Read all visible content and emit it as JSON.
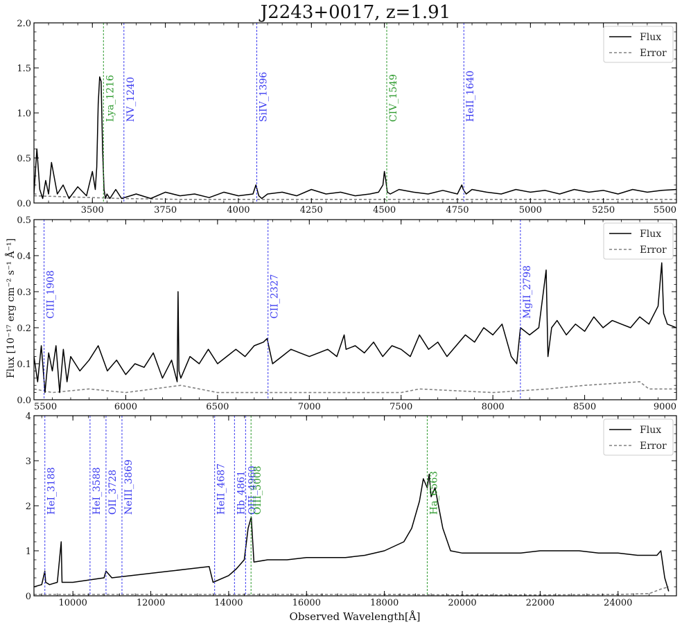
{
  "title": "J2243+0017, z=1.91",
  "xlabel": "Observed Wavelength[Å]",
  "ylabel": "Flux [10⁻¹⁷ erg cm⁻² s⁻¹ Å⁻¹]",
  "legend": {
    "flux": "Flux",
    "error": "Error"
  },
  "colors": {
    "flux": "#000000",
    "error": "#808080",
    "blue_line": "#3b3bf0",
    "green_line": "#2e9a2e"
  },
  "chart_data": [
    {
      "type": "line",
      "xlim": [
        3300,
        5500
      ],
      "ylim": [
        0,
        2.0
      ],
      "xticks": [
        3500,
        3750,
        4000,
        4250,
        4500,
        4750,
        5000,
        5250,
        5500
      ],
      "yticks": [
        0.0,
        0.5,
        1.0,
        1.5,
        2.0
      ],
      "ytick_labels": [
        "0.0",
        "0.5",
        "1.0",
        "1.5",
        "2.0"
      ],
      "legend_position": "top-right",
      "series": [
        {
          "name": "Flux",
          "style": "solid",
          "x": [
            3300,
            3310,
            3320,
            3330,
            3340,
            3350,
            3360,
            3380,
            3400,
            3420,
            3450,
            3480,
            3500,
            3510,
            3515,
            3520,
            3525,
            3530,
            3535,
            3540,
            3545,
            3550,
            3560,
            3580,
            3600,
            3650,
            3700,
            3750,
            3800,
            3850,
            3900,
            3950,
            4000,
            4050,
            4060,
            4070,
            4080,
            4100,
            4150,
            4200,
            4250,
            4300,
            4350,
            4400,
            4450,
            4480,
            4495,
            4500,
            4505,
            4510,
            4520,
            4550,
            4600,
            4650,
            4700,
            4750,
            4765,
            4770,
            4780,
            4800,
            4850,
            4900,
            4950,
            5000,
            5050,
            5100,
            5150,
            5200,
            5250,
            5300,
            5350,
            5400,
            5450,
            5500
          ],
          "y": [
            0.1,
            0.6,
            0.15,
            0.05,
            0.25,
            0.1,
            0.45,
            0.1,
            0.2,
            0.05,
            0.18,
            0.08,
            0.35,
            0.15,
            0.4,
            1.1,
            1.4,
            1.35,
            0.6,
            0.15,
            0.05,
            0.1,
            0.05,
            0.15,
            0.05,
            0.1,
            0.05,
            0.12,
            0.08,
            0.1,
            0.06,
            0.12,
            0.08,
            0.1,
            0.2,
            0.08,
            0.05,
            0.1,
            0.12,
            0.08,
            0.15,
            0.1,
            0.12,
            0.08,
            0.1,
            0.12,
            0.2,
            0.35,
            0.25,
            0.12,
            0.1,
            0.15,
            0.12,
            0.1,
            0.14,
            0.1,
            0.2,
            0.15,
            0.1,
            0.15,
            0.12,
            0.1,
            0.15,
            0.12,
            0.14,
            0.1,
            0.15,
            0.12,
            0.14,
            0.1,
            0.15,
            0.12,
            0.14,
            0.15
          ]
        },
        {
          "name": "Error",
          "style": "dashed",
          "x": [
            3300,
            3400,
            3500,
            3600,
            3800,
            4000,
            4500,
            5000,
            5500
          ],
          "y": [
            0.08,
            0.07,
            0.06,
            0.05,
            0.04,
            0.04,
            0.04,
            0.04,
            0.04
          ]
        }
      ],
      "lines": [
        {
          "x": 3538,
          "label": "Lya_1216",
          "color": "green"
        },
        {
          "x": 3608,
          "label": "NV_1240",
          "color": "blue"
        },
        {
          "x": 4063,
          "label": "SiIV_1396",
          "color": "blue"
        },
        {
          "x": 4508,
          "label": "CIV_1549",
          "color": "green"
        },
        {
          "x": 4772,
          "label": "HeII_1640",
          "color": "blue"
        }
      ]
    },
    {
      "type": "line",
      "xlim": [
        5500,
        9000
      ],
      "ylim": [
        0,
        0.5
      ],
      "xticks": [
        5500,
        6000,
        6500,
        7000,
        7500,
        8000,
        8500,
        9000
      ],
      "yticks": [
        0.0,
        0.1,
        0.2,
        0.3,
        0.4,
        0.5
      ],
      "ytick_labels": [
        "0.0",
        "0.1",
        "0.2",
        "0.3",
        "0.4",
        "0.5"
      ],
      "legend_position": "top-right",
      "series": [
        {
          "name": "Flux",
          "style": "solid",
          "x": [
            5500,
            5520,
            5540,
            5560,
            5580,
            5600,
            5620,
            5640,
            5660,
            5680,
            5700,
            5750,
            5800,
            5850,
            5900,
            5950,
            6000,
            6050,
            6100,
            6150,
            6200,
            6250,
            6280,
            6285,
            6290,
            6300,
            6350,
            6400,
            6450,
            6500,
            6550,
            6600,
            6650,
            6700,
            6750,
            6770,
            6800,
            6850,
            6900,
            6950,
            7000,
            7100,
            7150,
            7190,
            7200,
            7250,
            7300,
            7350,
            7400,
            7450,
            7500,
            7550,
            7600,
            7650,
            7700,
            7750,
            7800,
            7850,
            7900,
            7950,
            8000,
            8050,
            8100,
            8130,
            8150,
            8200,
            8250,
            8290,
            8300,
            8320,
            8350,
            8400,
            8450,
            8500,
            8550,
            8600,
            8650,
            8700,
            8750,
            8800,
            8850,
            8900,
            8920,
            8930,
            8950,
            9000
          ],
          "y": [
            0.12,
            0.05,
            0.15,
            0.02,
            0.13,
            0.08,
            0.15,
            0.02,
            0.14,
            0.05,
            0.12,
            0.08,
            0.11,
            0.15,
            0.08,
            0.11,
            0.07,
            0.1,
            0.09,
            0.13,
            0.06,
            0.11,
            0.05,
            0.3,
            0.08,
            0.06,
            0.12,
            0.1,
            0.14,
            0.1,
            0.12,
            0.14,
            0.12,
            0.15,
            0.16,
            0.17,
            0.1,
            0.12,
            0.14,
            0.13,
            0.12,
            0.14,
            0.12,
            0.18,
            0.14,
            0.15,
            0.13,
            0.16,
            0.12,
            0.15,
            0.14,
            0.12,
            0.18,
            0.14,
            0.16,
            0.12,
            0.15,
            0.18,
            0.16,
            0.2,
            0.18,
            0.21,
            0.12,
            0.1,
            0.2,
            0.18,
            0.2,
            0.36,
            0.12,
            0.2,
            0.22,
            0.18,
            0.21,
            0.19,
            0.23,
            0.2,
            0.22,
            0.21,
            0.2,
            0.23,
            0.21,
            0.26,
            0.38,
            0.24,
            0.21,
            0.2
          ]
        },
        {
          "name": "Error",
          "style": "dashed",
          "x": [
            5500,
            5600,
            5800,
            6000,
            6300,
            6500,
            7000,
            7500,
            7600,
            8000,
            8300,
            8500,
            8800,
            8850,
            9000
          ],
          "y": [
            0.03,
            0.02,
            0.03,
            0.02,
            0.04,
            0.02,
            0.02,
            0.02,
            0.03,
            0.02,
            0.03,
            0.04,
            0.05,
            0.03,
            0.03
          ]
        }
      ],
      "lines": [
        {
          "x": 5555,
          "label": "CIII_1908",
          "color": "blue"
        },
        {
          "x": 6775,
          "label": "CII_2327",
          "color": "blue"
        },
        {
          "x": 8150,
          "label": "MgII_2798",
          "color": "blue"
        }
      ]
    },
    {
      "type": "line",
      "xlim": [
        9000,
        25500
      ],
      "ylim": [
        0,
        4
      ],
      "xticks": [
        10000,
        12000,
        14000,
        16000,
        18000,
        20000,
        22000,
        24000
      ],
      "yticks": [
        0,
        1,
        2,
        3,
        4
      ],
      "ytick_labels": [
        "0",
        "1",
        "2",
        "3",
        "4"
      ],
      "legend_position": "top-right",
      "series": [
        {
          "name": "Flux",
          "style": "solid",
          "x": [
            9000,
            9200,
            9280,
            9300,
            9400,
            9600,
            9700,
            9720,
            9800,
            10000,
            10400,
            10800,
            10850,
            11000,
            11500,
            12000,
            12500,
            13000,
            13500,
            13600,
            14000,
            14200,
            14400,
            14500,
            14580,
            14650,
            15000,
            15500,
            16000,
            16500,
            17000,
            17500,
            18000,
            18500,
            18700,
            18900,
            19000,
            19100,
            19150,
            19200,
            19300,
            19500,
            19700,
            20000,
            20500,
            21000,
            21500,
            22000,
            22500,
            23000,
            23500,
            24000,
            24500,
            25000,
            25100,
            25200,
            25300
          ],
          "y": [
            0.2,
            0.25,
            0.55,
            0.3,
            0.25,
            0.3,
            1.2,
            0.3,
            0.3,
            0.3,
            0.35,
            0.4,
            0.55,
            0.4,
            0.45,
            0.5,
            0.55,
            0.6,
            0.65,
            0.3,
            0.45,
            0.6,
            0.8,
            1.5,
            1.75,
            0.75,
            0.8,
            0.8,
            0.85,
            0.85,
            0.85,
            0.9,
            1.0,
            1.2,
            1.5,
            2.1,
            2.6,
            2.4,
            2.7,
            2.2,
            2.4,
            1.5,
            1.0,
            0.95,
            0.95,
            0.95,
            0.95,
            1.0,
            1.0,
            1.0,
            0.95,
            0.95,
            0.9,
            0.9,
            1.0,
            0.4,
            0.1
          ]
        },
        {
          "name": "Error",
          "style": "dashed",
          "x": [
            9000,
            10000,
            12000,
            14000,
            16000,
            18000,
            20000,
            22000,
            24000,
            24800,
            25100,
            25300
          ],
          "y": [
            0.03,
            0.03,
            0.03,
            0.03,
            0.03,
            0.03,
            0.02,
            0.02,
            0.03,
            0.05,
            0.15,
            0.2
          ]
        }
      ],
      "lines": [
        {
          "x": 9280,
          "label": "HeI_3188",
          "color": "blue"
        },
        {
          "x": 10440,
          "label": "HeI_3588",
          "color": "blue"
        },
        {
          "x": 10850,
          "label": "OII_3728",
          "color": "blue"
        },
        {
          "x": 11260,
          "label": "NeIII_3869",
          "color": "blue"
        },
        {
          "x": 13640,
          "label": "HeII_4687",
          "color": "blue"
        },
        {
          "x": 14150,
          "label": "Hb_4861",
          "color": "blue"
        },
        {
          "x": 14435,
          "label": "OIII_4960",
          "color": "blue"
        },
        {
          "x": 14575,
          "label": "OIII_5008",
          "color": "green"
        },
        {
          "x": 19100,
          "label": "Ha_6563",
          "color": "green"
        }
      ]
    }
  ]
}
